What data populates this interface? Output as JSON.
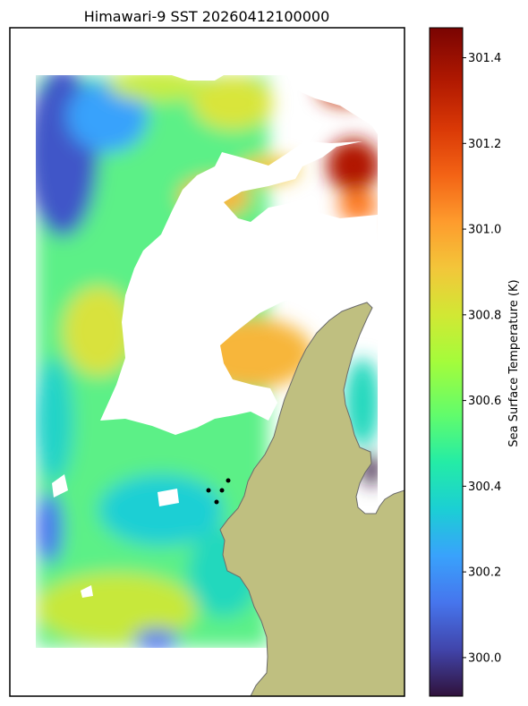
{
  "chart_data": {
    "type": "heatmap",
    "title": "Himawari-9 SST 20260412100000",
    "colorbar": {
      "label": "Sea Surface Temperature (K)",
      "range": [
        299.91,
        301.47
      ],
      "ticks": [
        300.0,
        300.2,
        300.4,
        300.6,
        300.8,
        301.0,
        301.2,
        301.4
      ],
      "tick_labels": [
        "300.0",
        "300.2",
        "300.4",
        "300.6",
        "300.8",
        "301.0",
        "301.2",
        "301.4"
      ],
      "colormap": "turbo"
    },
    "grid": false,
    "axes_ticks": false,
    "land_color": "#bfbf80",
    "missing_color": "#ffffff",
    "markers": {
      "count": 4,
      "color": "#000000"
    }
  }
}
